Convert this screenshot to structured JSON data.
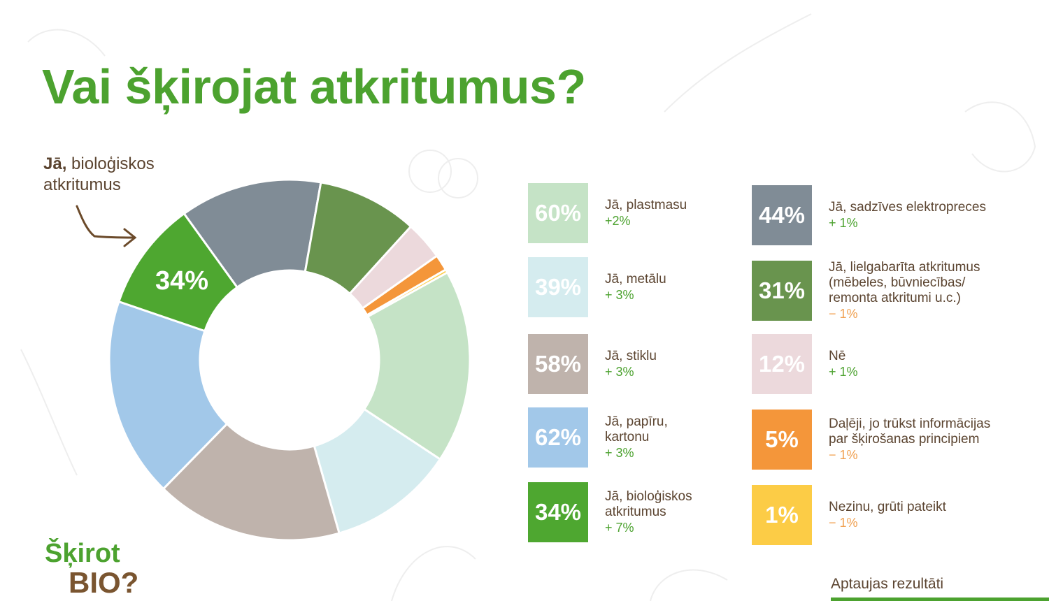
{
  "title": "Vai šķirojat atkritumus?",
  "callout": {
    "bold": "Jā,",
    "rest": " bioloģiskos",
    "line2": "atkritumus",
    "slice_label": "34%"
  },
  "logo": {
    "line1": "Šķirot",
    "line2": "BIO?"
  },
  "footer": {
    "label": "Aptaujas rezultāti"
  },
  "colors": {
    "title": "#4ca22f",
    "text": "#5b4430",
    "delta_up": "#4ca22f",
    "delta_down": "#f0a050"
  },
  "chart_data": {
    "type": "pie",
    "donut": true,
    "title": "Vai šķirojat atkritumus?",
    "unit": "%",
    "categories": [
      "Jā, plastmasu",
      "Jā, metālu",
      "Jā, stiklu",
      "Jā, papīru, kartonu",
      "Jā, bioloģiskos atkritumus",
      "Jā, sadzīves elektropreces",
      "Jā, lielgabarīta atkritumus (mēbeles, būvniecības/ remonta atkritumi u.c.)",
      "Nē",
      "Daļēji, jo trūkst informācijas par šķirošanas principiem",
      "Nezinu, grūti pateikt"
    ],
    "values": [
      60,
      39,
      58,
      62,
      34,
      44,
      31,
      12,
      5,
      1
    ],
    "value_labels": [
      "60%",
      "39%",
      "58%",
      "62%",
      "34%",
      "44%",
      "31%",
      "12%",
      "5%",
      "1%"
    ],
    "changes": [
      "+2%",
      "+ 3%",
      "+ 3%",
      "+ 3%",
      "+ 7%",
      "+ 1%",
      "− 1%",
      "+ 1%",
      "− 1%",
      "− 1%"
    ],
    "colors": [
      "#c5e3c6",
      "#d5ecef",
      "#bfb3ac",
      "#a2c8e9",
      "#4ea730",
      "#808c96",
      "#69944e",
      "#ecd9dc",
      "#f4963a",
      "#fccc46"
    ],
    "legend_placement": "right"
  }
}
